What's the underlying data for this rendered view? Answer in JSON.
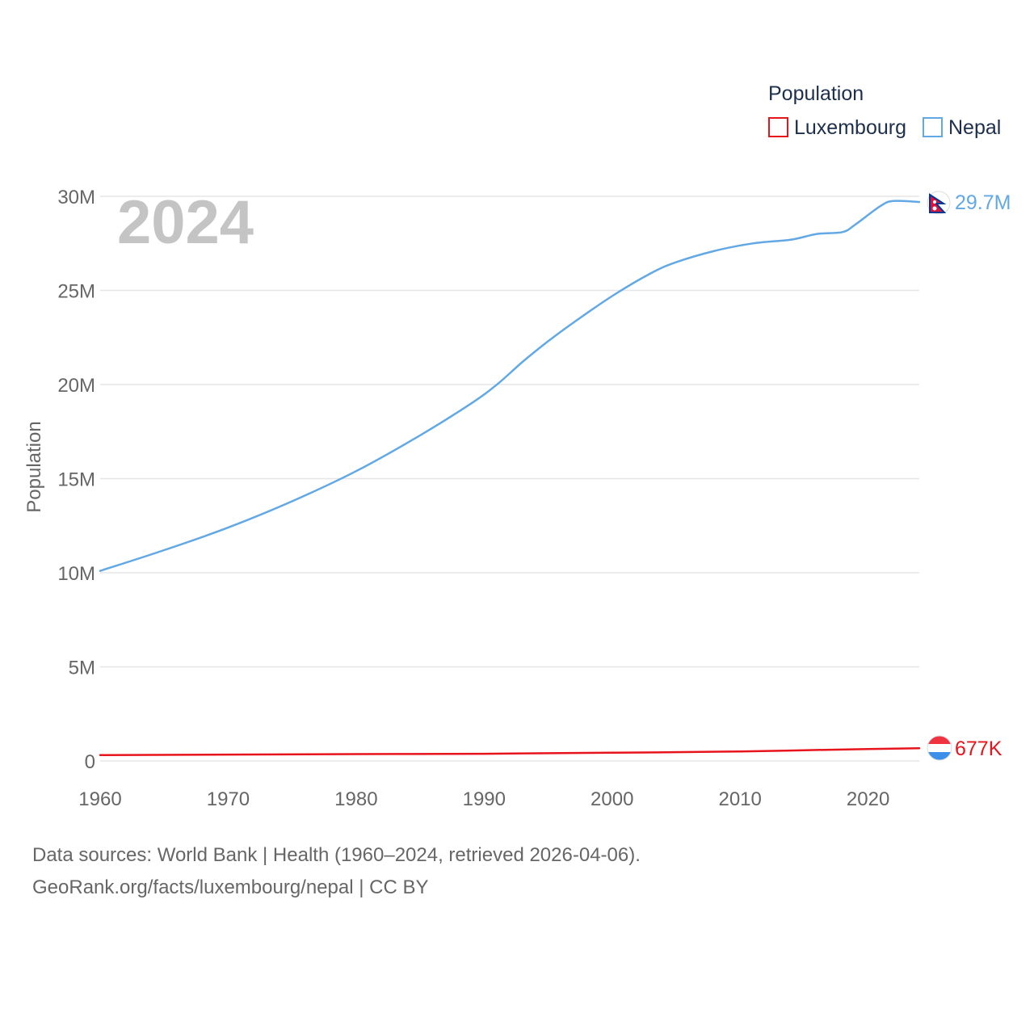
{
  "chart_data": {
    "type": "line",
    "year_label": "2024",
    "ylabel": "Population",
    "ylim": [
      0,
      30000000
    ],
    "xlim": [
      1960,
      2024
    ],
    "y_ticks": [
      {
        "value": 0,
        "label": "0"
      },
      {
        "value": 5000000,
        "label": "5M"
      },
      {
        "value": 10000000,
        "label": "10M"
      },
      {
        "value": 15000000,
        "label": "15M"
      },
      {
        "value": 20000000,
        "label": "20M"
      },
      {
        "value": 25000000,
        "label": "25M"
      },
      {
        "value": 30000000,
        "label": "30M"
      }
    ],
    "x_ticks": [
      {
        "value": 1960,
        "label": "1960"
      },
      {
        "value": 1970,
        "label": "1970"
      },
      {
        "value": 1980,
        "label": "1980"
      },
      {
        "value": 1990,
        "label": "1990"
      },
      {
        "value": 2000,
        "label": "2000"
      },
      {
        "value": 2010,
        "label": "2010"
      },
      {
        "value": 2020,
        "label": "2020"
      }
    ],
    "legend": {
      "title": "Population",
      "items": [
        {
          "name": "Luxembourg",
          "color": "#e8141c"
        },
        {
          "name": "Nepal",
          "color": "#62a8e5"
        }
      ]
    },
    "series": [
      {
        "name": "Luxembourg",
        "color": "#e8141c",
        "end_label": "677K",
        "x": [
          1960,
          1970,
          1980,
          1990,
          2000,
          2010,
          2015,
          2020,
          2024
        ],
        "y": [
          313000,
          339000,
          364000,
          382000,
          436000,
          507000,
          570000,
          630000,
          677000
        ]
      },
      {
        "name": "Nepal",
        "color": "#62a8e5",
        "end_label": "29.7M",
        "x": [
          1960,
          1965,
          1970,
          1975,
          1980,
          1985,
          1989,
          1991,
          1993,
          1995,
          1997,
          2000,
          2003,
          2005,
          2008,
          2011,
          2014,
          2016,
          2018,
          2019,
          2021,
          2022,
          2024
        ],
        "y": [
          10100000,
          11200000,
          12400000,
          13800000,
          15400000,
          17300000,
          19000000,
          20000000,
          21200000,
          22300000,
          23300000,
          24700000,
          25900000,
          26500000,
          27100000,
          27500000,
          27700000,
          28000000,
          28100000,
          28500000,
          29500000,
          29750000,
          29700000
        ]
      }
    ]
  },
  "footer": {
    "source_line": "Data sources: World Bank | Health (1960–2024, retrieved 2026-04-06).",
    "url_line": "GeoRank.org/facts/luxembourg/nepal | CC BY"
  }
}
